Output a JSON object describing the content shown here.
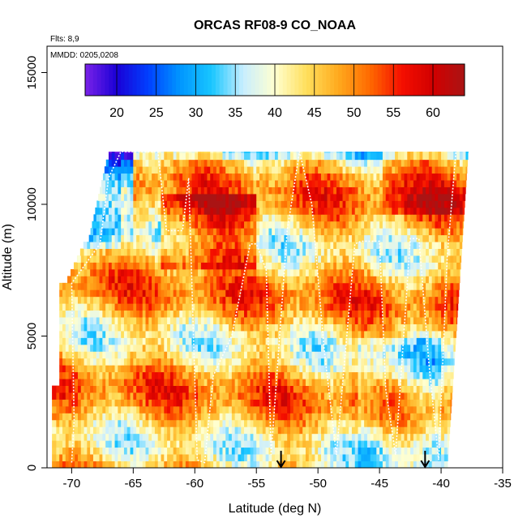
{
  "chart_data": {
    "type": "heatmap",
    "title": "ORCAS RF08-9 CO_NOAA",
    "flights_note": "Flts: 8,9",
    "dates_note": "MMDD: 0205,0208",
    "xlabel": "Latitude (deg N)",
    "ylabel": "Altitude (m)",
    "xlim": [
      -72,
      -35
    ],
    "ylim": [
      0,
      16000
    ],
    "x_ticks": [
      -70,
      -65,
      -60,
      -55,
      -50,
      -45,
      -40,
      -35
    ],
    "y_ticks": [
      0,
      5000,
      10000,
      15000
    ],
    "x_tick_labels": [
      "-70",
      "-65",
      "-60",
      "-55",
      "-50",
      "-45",
      "-40",
      "-35"
    ],
    "y_tick_labels": [
      "0",
      "5000",
      "10000",
      "15000"
    ],
    "colorbar": {
      "min": 16,
      "max": 64,
      "tick_values": [
        20,
        25,
        30,
        35,
        40,
        45,
        50,
        55,
        60
      ],
      "tick_labels": [
        "20",
        "25",
        "30",
        "35",
        "40",
        "45",
        "50",
        "55",
        "60"
      ],
      "colors": [
        "#7a22e8",
        "#1a00d6",
        "#0040ff",
        "#0096ff",
        "#19c6ff",
        "#c9eeff",
        "#ffffd0",
        "#ffdf5c",
        "#ffaa1e",
        "#ff6a00",
        "#f50f00",
        "#d10000",
        "#aa1414"
      ]
    },
    "arrow_markers_lat": [
      -53,
      -41.3
    ],
    "flight_track": [
      [
        -70,
        200
      ],
      [
        -69.8,
        1800
      ],
      [
        -70,
        7000
      ],
      [
        -67.7,
        8500
      ],
      [
        -67,
        11000
      ],
      [
        -66,
        12000
      ],
      [
        -63,
        12000
      ],
      [
        -62.3,
        9000
      ],
      [
        -61,
        9000
      ],
      [
        -60.5,
        11000
      ],
      [
        -59.8,
        300
      ],
      [
        -59.2,
        200
      ],
      [
        -58.5,
        3500
      ],
      [
        -57,
        5000
      ],
      [
        -55.5,
        8500
      ],
      [
        -55,
        8500
      ],
      [
        -54.2,
        7500
      ],
      [
        -53.8,
        500
      ],
      [
        -52.5,
        9000
      ],
      [
        -51.5,
        12000
      ],
      [
        -50.5,
        10000
      ],
      [
        -49.5,
        4500
      ],
      [
        -48.5,
        500
      ],
      [
        -47,
        8500
      ],
      [
        -46.5,
        8600
      ],
      [
        -45,
        8600
      ],
      [
        -44.5,
        3000
      ],
      [
        -43.7,
        500
      ],
      [
        -42.5,
        8700
      ],
      [
        -41.8,
        8700
      ],
      [
        -41,
        4000
      ],
      [
        -40.2,
        300
      ],
      [
        -39.5,
        8000
      ],
      [
        -38.8,
        12000
      ]
    ]
  }
}
